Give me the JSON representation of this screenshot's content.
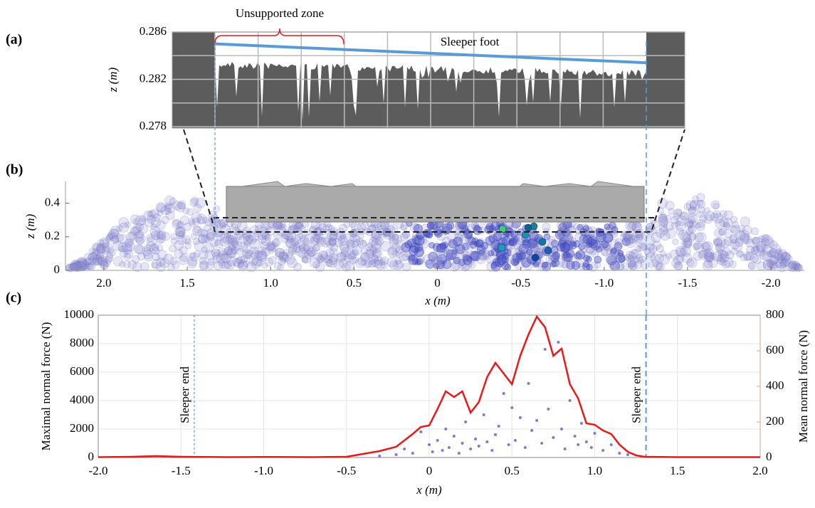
{
  "panel_labels": [
    "(a)",
    "(b)",
    "(c)"
  ],
  "chart_data": [
    {
      "type": "profile",
      "ylabel": "z (m)",
      "ylim": [
        0.278,
        0.286
      ],
      "yticks": [
        0.278,
        0.282,
        0.286
      ],
      "grid": true,
      "annotations": [
        "Unsupported zone",
        "Sleeper foot"
      ],
      "sleeper_foot_z": [
        0.285,
        0.2834
      ],
      "color": "#5c5c5c",
      "line_color": "#5b9bd5"
    },
    {
      "type": "particles",
      "xlabel": "x (m)",
      "ylabel": "z (m)",
      "xlim": [
        2.23,
        -2.2
      ],
      "ylim": [
        0,
        0.53
      ],
      "xticks": [
        {
          "value": 2,
          "label": "2.0"
        },
        1.5,
        {
          "value": 1,
          "label": "1.0"
        },
        0.5,
        0,
        -0.5,
        {
          "value": -1,
          "label": "-1.0"
        },
        -1.5,
        {
          "value": -2,
          "label": "-2.0"
        }
      ],
      "yticks": [
        0,
        0.2,
        0.4
      ]
    },
    {
      "type": "line",
      "xlabel": "x (m)",
      "ylabel": "Maximal normal force (N)",
      "y2label": "Mean normal force (N)",
      "xlim": [
        -2,
        2
      ],
      "ylim": [
        0,
        10000
      ],
      "y2lim": [
        0,
        800
      ],
      "grid": true,
      "xticks": [
        {
          "value": -2,
          "label": "-2.0"
        },
        -1.5,
        {
          "value": -1,
          "label": "-1.0"
        },
        -0.5,
        0,
        0.5,
        {
          "value": 1,
          "label": "1.0"
        },
        1.5,
        {
          "value": 2,
          "label": "2.0"
        }
      ],
      "yticks": [
        0,
        2000,
        4000,
        6000,
        8000,
        10000
      ],
      "y2ticks": [
        0,
        200,
        400,
        600,
        800
      ],
      "annotations": [
        {
          "text": "Sleeper end",
          "x": -1.42
        },
        {
          "text": "Sleeper end",
          "x": 1.31
        }
      ],
      "series": [
        {
          "type": "scatter",
          "color": "#7b7bd6",
          "x": [
            -0.3,
            -0.2,
            -0.15,
            -0.1,
            -0.05,
            0,
            0.02,
            0.05,
            0.08,
            0.1,
            0.12,
            0.15,
            0.18,
            0.2,
            0.22,
            0.25,
            0.28,
            0.3,
            0.33,
            0.35,
            0.38,
            0.4,
            0.42,
            0.45,
            0.48,
            0.5,
            0.52,
            0.55,
            0.58,
            0.6,
            0.62,
            0.65,
            0.68,
            0.7,
            0.72,
            0.75,
            0.78,
            0.8,
            0.82,
            0.85,
            0.88,
            0.9,
            0.92,
            0.95,
            0.98,
            1.0,
            1.05,
            1.1,
            1.15,
            1.2
          ],
          "values": [
            100,
            200,
            600,
            300,
            1800,
            900,
            400,
            1200,
            500,
            2000,
            700,
            1500,
            300,
            1000,
            2500,
            600,
            1300,
            800,
            3000,
            1100,
            500,
            1600,
            2200,
            4500,
            900,
            3500,
            1200,
            2800,
            700,
            5200,
            1900,
            2600,
            1000,
            7600,
            3400,
            1400,
            8100,
            2000,
            600,
            4000,
            1500,
            900,
            2400,
            1100,
            700,
            1700,
            500,
            900,
            300,
            200
          ]
        },
        {
          "type": "line",
          "axis": "y2",
          "color": "#e8191a",
          "x": [
            -2,
            -1.8,
            -1.65,
            -1.5,
            -1.2,
            -1,
            -0.7,
            -0.5,
            -0.4,
            -0.3,
            -0.2,
            -0.1,
            -0.05,
            0,
            0.05,
            0.1,
            0.15,
            0.2,
            0.25,
            0.3,
            0.35,
            0.4,
            0.45,
            0.5,
            0.55,
            0.6,
            0.65,
            0.7,
            0.75,
            0.8,
            0.85,
            0.9,
            0.95,
            1,
            1.05,
            1.1,
            1.15,
            1.2,
            1.25,
            1.3,
            1.5,
            1.8,
            2
          ],
          "values": [
            2,
            4,
            8,
            4,
            2,
            3,
            2,
            4,
            20,
            36,
            60,
            132,
            172,
            180,
            272,
            372,
            340,
            372,
            252,
            312,
            452,
            532,
            472,
            412,
            572,
            692,
            792,
            732,
            572,
            612,
            412,
            332,
            192,
            184,
            152,
            132,
            72,
            32,
            12,
            4,
            2,
            2,
            2
          ]
        }
      ]
    }
  ]
}
